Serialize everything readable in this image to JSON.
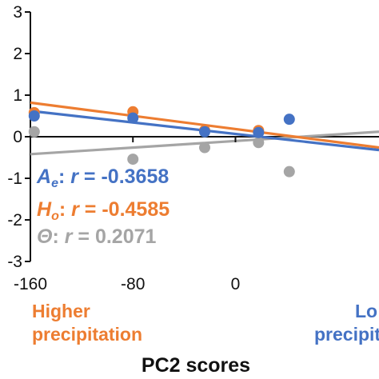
{
  "chart_data": {
    "type": "scatter",
    "xlabel": "PC2 scores",
    "ylabel": "",
    "xlim": [
      -160,
      112
    ],
    "ylim": [
      -3,
      3
    ],
    "x_ticks": [
      -160,
      -80,
      0
    ],
    "y_ticks": [
      3,
      2,
      1,
      0,
      -1,
      -2,
      -3
    ],
    "grid": false,
    "series": [
      {
        "name": "Ae",
        "color": "#4472C4",
        "points": [
          [
            -157,
            0.5
          ],
          [
            -80,
            0.45
          ],
          [
            -24,
            0.12
          ],
          [
            18,
            0.1
          ],
          [
            42,
            0.42
          ]
        ],
        "fit": [
          [
            -160,
            0.62
          ],
          [
            112,
            -0.32
          ]
        ]
      },
      {
        "name": "Ho",
        "color": "#ED7D31",
        "points": [
          [
            -157,
            0.58
          ],
          [
            -80,
            0.6
          ],
          [
            -24,
            0.15
          ],
          [
            18,
            0.15
          ]
        ],
        "fit": [
          [
            -160,
            0.82
          ],
          [
            112,
            -0.26
          ]
        ]
      },
      {
        "name": "Θ",
        "color": "#A5A5A5",
        "points": [
          [
            -157,
            0.12
          ],
          [
            -80,
            -0.54
          ],
          [
            -24,
            -0.26
          ],
          [
            18,
            -0.14
          ],
          [
            42,
            -0.84
          ]
        ],
        "fit": [
          [
            -160,
            -0.42
          ],
          [
            112,
            0.12
          ]
        ]
      }
    ],
    "annotations": [
      {
        "symbol": "A",
        "sub": "e",
        "label": ": r = ",
        "value": "-0.3658",
        "color": "#4472C4"
      },
      {
        "symbol": "H",
        "sub": "o",
        "label": ": r = ",
        "value": "-0.4585",
        "color": "#ED7D31"
      },
      {
        "symbol": "Θ",
        "sub": "",
        "label": ": r = ",
        "value": "0.2071",
        "color": "#A5A5A5"
      }
    ],
    "left_note": [
      "Higher",
      "precipitation"
    ],
    "right_note": [
      "Lo",
      "precipitati"
    ],
    "left_note_color": "#ED7D31",
    "right_note_color": "#4472C4"
  }
}
